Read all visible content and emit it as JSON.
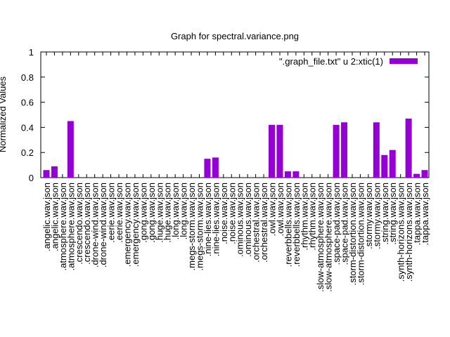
{
  "chart_data": {
    "type": "bar",
    "title": "Graph for spectral.variance.png",
    "y_label": "Normalized Values",
    "categories": [
      ".angelic.wav.json",
      ".angelic.wav.json",
      ".atmosphere.wav.json",
      ".atmosphere.wav.json",
      ".crescendo.wav.json",
      ".crescendo.wav.json",
      ".drone-wind.wav.json",
      ".drone-wind.wav.json",
      ".eerie.wav.json",
      ".eerie.wav.json",
      ".emergency.wav.json",
      ".emergency.wav.json",
      ".gong.wav.json",
      ".gong.wav.json",
      ".huge.wav.json",
      ".huge.wav.json",
      ".long.wav.json",
      ".long.wav.json",
      ".megs-storm.wav.json",
      ".megs-storm.wav.json",
      ".nine-lies.wav.json",
      ".nine-lies.wav.json",
      ".noise.wav.json",
      ".noise.wav.json",
      ".ominous.wav.json",
      ".ominous.wav.json",
      ".orchestral.wav.json",
      ".orchestral.wav.json",
      ".owl.wav.json",
      ".owl.wav.json",
      ".reverbbells.wav.json",
      ".reverbbells.wav.json",
      ".rhythm.wav.json",
      ".rhythm.wav.json",
      ".slow-atmosphere.wav.json",
      ".slow-atmosphere.wav.json",
      ".space-pad.wav.json",
      ".space-pad.wav.json",
      ".storm-distortion.wav.json",
      ".storm-distortion.wav.json",
      ".stormy.wav.json",
      ".stormy.wav.json",
      ".string.wav.json",
      ".string.wav.json",
      ".synth-horizons.wav.json",
      ".synth-horizons.wav.json",
      ".tappa.wav.json",
      ".tappa.wav.json"
    ],
    "series": [
      {
        "name": "\".graph_file.txt\" u 2:xtic(1)",
        "color": "#9400d3",
        "values": [
          0.06,
          0.09,
          0,
          0.45,
          0,
          0,
          0,
          0,
          0,
          0,
          0,
          0,
          0,
          0,
          0,
          0,
          0,
          0,
          0,
          0,
          0.15,
          0.16,
          0,
          0,
          0,
          0,
          0,
          0,
          0.42,
          0.42,
          0.05,
          0.05,
          0,
          0,
          0,
          0,
          0.42,
          0.44,
          0,
          0,
          0,
          0.44,
          0.18,
          0.22,
          0,
          0.47,
          0.03,
          0.06
        ]
      }
    ],
    "ylim": [
      0,
      1
    ],
    "yticks": [
      0,
      0.2,
      0.4,
      0.6,
      0.8,
      1
    ],
    "legend": "top-right"
  }
}
